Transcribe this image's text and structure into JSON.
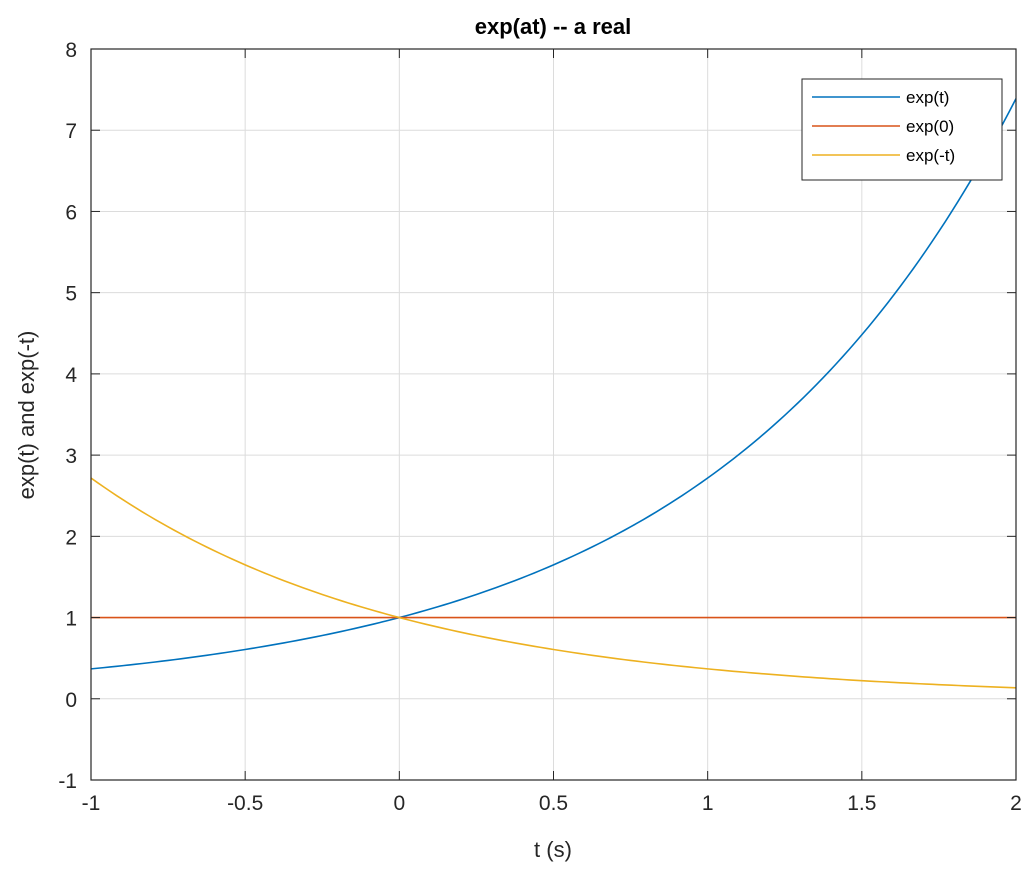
{
  "chart_data": {
    "type": "line",
    "title": "exp(at) -- a real",
    "xlabel": "t (s)",
    "ylabel": "exp(t) and exp(-t)",
    "xlim": [
      -1,
      2
    ],
    "ylim": [
      -1,
      8
    ],
    "xticks": [
      -1,
      -0.5,
      0,
      0.5,
      1,
      1.5,
      2
    ],
    "xtick_labels": [
      "-1",
      "-0.5",
      "0",
      "0.5",
      "1",
      "1.5",
      "2"
    ],
    "yticks": [
      -1,
      0,
      1,
      2,
      3,
      4,
      5,
      6,
      7,
      8
    ],
    "ytick_labels": [
      "-1",
      "0",
      "1",
      "2",
      "3",
      "4",
      "5",
      "6",
      "7",
      "8"
    ],
    "grid": true,
    "legend_position": "top-right",
    "x": [
      -1,
      -0.75,
      -0.5,
      -0.25,
      0,
      0.25,
      0.5,
      0.75,
      1,
      1.25,
      1.5,
      1.75,
      2
    ],
    "series": [
      {
        "name": "exp(t)",
        "color": "#0072BD",
        "values": [
          0.368,
          0.472,
          0.607,
          0.779,
          1.0,
          1.284,
          1.649,
          2.117,
          2.718,
          3.49,
          4.482,
          5.755,
          7.389
        ]
      },
      {
        "name": "exp(0)",
        "color": "#D95319",
        "values": [
          1,
          1,
          1,
          1,
          1,
          1,
          1,
          1,
          1,
          1,
          1,
          1,
          1
        ]
      },
      {
        "name": "exp(-t)",
        "color": "#EDB120",
        "values": [
          2.718,
          2.117,
          1.649,
          1.284,
          1.0,
          0.779,
          0.607,
          0.472,
          0.368,
          0.287,
          0.223,
          0.174,
          0.135
        ]
      }
    ]
  }
}
